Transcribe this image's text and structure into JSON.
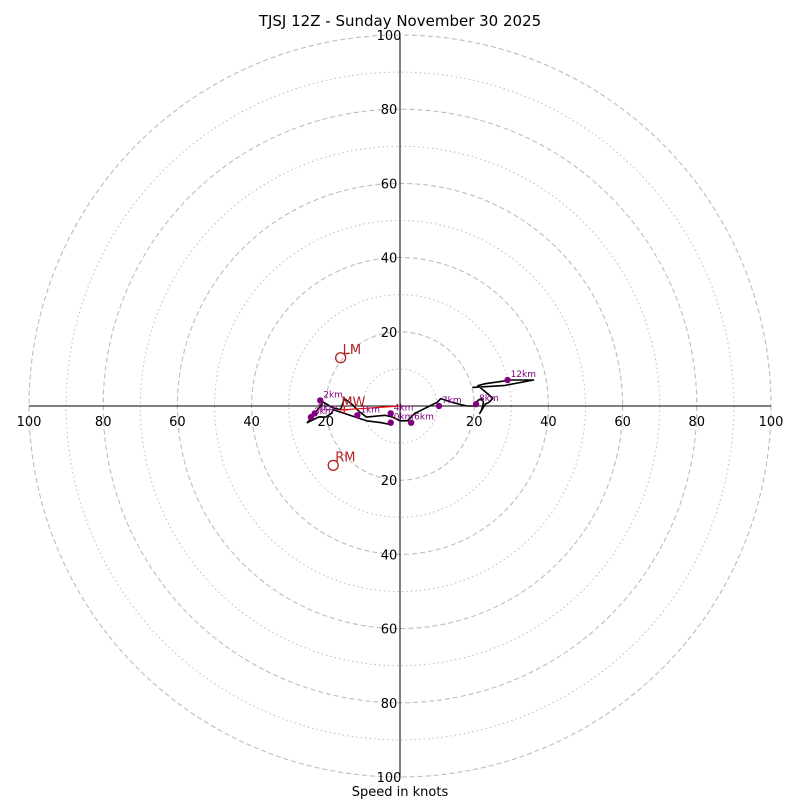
{
  "chart_data": {
    "type": "scatter",
    "title": "TJSJ 12Z - Sunday November 30 2025",
    "xlabel": "Speed in knots",
    "max_speed": 100,
    "ring_step_dashed": 20,
    "ring_offset_dotted": 10,
    "tick_values_x_left": [
      "100",
      "80",
      "60",
      "40",
      "20"
    ],
    "tick_values_x_right": [
      "20",
      "40",
      "60",
      "80",
      "100"
    ],
    "tick_values_y_top": [
      "100",
      "80",
      "60",
      "40",
      "20"
    ],
    "tick_values_y_bottom": [
      "20",
      "40",
      "60",
      "80",
      "100"
    ],
    "hodograph_trace": [
      [
        -2.5,
        -5
      ],
      [
        -5,
        -4.5
      ],
      [
        -9,
        -4
      ],
      [
        -12,
        -3
      ],
      [
        -15,
        -2
      ],
      [
        -18,
        -1
      ],
      [
        -18.5,
        -2
      ],
      [
        -20,
        -3
      ],
      [
        -22,
        -3
      ],
      [
        -25,
        -4.5
      ],
      [
        -23,
        -2
      ],
      [
        -21,
        0.5
      ],
      [
        -21.5,
        1.5
      ],
      [
        -18,
        -0.5
      ],
      [
        -16,
        -1
      ],
      [
        -15,
        2
      ],
      [
        -13,
        0.5
      ],
      [
        -11,
        -1.5
      ],
      [
        -9,
        -3
      ],
      [
        -4,
        -2.5
      ],
      [
        -2,
        -3
      ],
      [
        0,
        -4
      ],
      [
        2,
        -4
      ],
      [
        3,
        -3
      ],
      [
        4,
        -2
      ],
      [
        6,
        -1
      ],
      [
        8,
        0
      ],
      [
        10,
        1
      ],
      [
        11,
        2
      ],
      [
        14,
        1
      ],
      [
        18,
        0
      ],
      [
        20,
        0
      ],
      [
        21,
        1.5
      ],
      [
        22,
        2
      ],
      [
        22.5,
        1
      ],
      [
        22,
        -1
      ],
      [
        21.5,
        -2
      ],
      [
        23,
        0.5
      ],
      [
        24,
        1
      ],
      [
        25,
        2
      ],
      [
        24,
        3
      ],
      [
        21,
        5.5
      ],
      [
        23,
        6
      ],
      [
        30,
        7
      ],
      [
        36,
        7
      ],
      [
        28,
        5.5
      ],
      [
        19.5,
        5
      ]
    ],
    "height_markers": [
      {
        "label": "0km",
        "u": -2.5,
        "v": -4.5
      },
      {
        "label": "1km",
        "u": -11.5,
        "v": -2.5
      },
      {
        "label": "2km",
        "u": -21.5,
        "v": 1.5
      },
      {
        "label": "3km",
        "u": -24,
        "v": -3
      },
      {
        "label": "4km",
        "u": -2.5,
        "v": -2
      },
      {
        "label": "5km",
        "u": -23,
        "v": -2
      },
      {
        "label": "6km",
        "u": 3,
        "v": -4.5
      },
      {
        "label": "7km",
        "u": 10.5,
        "v": 0
      },
      {
        "label": "8km",
        "u": 20.5,
        "v": 0.5
      },
      {
        "label": "12km",
        "u": 29,
        "v": 7
      }
    ],
    "storm_motions": [
      {
        "label": "LM",
        "u": -16,
        "v": 13
      },
      {
        "label": "RM",
        "u": -18,
        "v": -16
      },
      {
        "label": "MW",
        "u": -15,
        "v": -1
      }
    ],
    "shear_vector": {
      "from": [
        -15,
        -1
      ],
      "to": [
        0,
        0
      ]
    },
    "colors": {
      "trace": "#000000",
      "marker": "#800080",
      "storm_motion": "#b22222",
      "mean_wind": "#e31a1c",
      "shear": "#ff0000",
      "ring": "#bdbdbd",
      "axis": "#000000"
    }
  }
}
